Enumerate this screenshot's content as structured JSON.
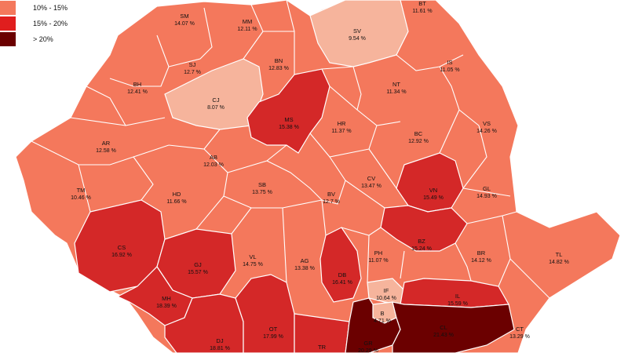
{
  "legend": [
    {
      "label": "10% - 15%",
      "color": "#f4785c"
    },
    {
      "label": "15% - 20%",
      "color": "#e01e1e"
    },
    {
      "label": "> 20%",
      "color": "#6b0000"
    }
  ],
  "colors": {
    "lt10": "#f6b49c",
    "r10_15": "#f4785c",
    "r15_20": "#d42828",
    "gt20": "#6b0000",
    "border": "#ffffff"
  },
  "counties": [
    {
      "code": "SM",
      "value": "14.07 %"
    },
    {
      "code": "MM",
      "value": "12.11 %"
    },
    {
      "code": "SV",
      "value": "9.54 %"
    },
    {
      "code": "BT",
      "value": "11.61 %"
    },
    {
      "code": "SJ",
      "value": "12.7 %"
    },
    {
      "code": "BN",
      "value": "12.83 %"
    },
    {
      "code": "IS",
      "value": "11.05 %"
    },
    {
      "code": "BH",
      "value": "12.41 %"
    },
    {
      "code": "CJ",
      "value": "8.07 %"
    },
    {
      "code": "NT",
      "value": "11.34 %"
    },
    {
      "code": "MS",
      "value": "15.38 %"
    },
    {
      "code": "HR",
      "value": "11.37 %"
    },
    {
      "code": "BC",
      "value": "12.92 %"
    },
    {
      "code": "VS",
      "value": "14.26 %"
    },
    {
      "code": "AR",
      "value": "12.58 %"
    },
    {
      "code": "AB",
      "value": "12.03 %"
    },
    {
      "code": "SB",
      "value": "13.75 %"
    },
    {
      "code": "BV",
      "value": "12.7 %"
    },
    {
      "code": "CV",
      "value": "13.47 %"
    },
    {
      "code": "VN",
      "value": "15.49 %"
    },
    {
      "code": "GL",
      "value": "14.93 %"
    },
    {
      "code": "TM",
      "value": "10.46 %"
    },
    {
      "code": "HD",
      "value": "11.66 %"
    },
    {
      "code": "CS",
      "value": "16.92 %"
    },
    {
      "code": "GJ",
      "value": "15.57 %"
    },
    {
      "code": "VL",
      "value": "14.75 %"
    },
    {
      "code": "AG",
      "value": "13.38 %"
    },
    {
      "code": "DB",
      "value": "16.41 %"
    },
    {
      "code": "PH",
      "value": "11.07 %"
    },
    {
      "code": "BZ",
      "value": "15.24 %"
    },
    {
      "code": "BR",
      "value": "14.12 %"
    },
    {
      "code": "TL",
      "value": "14.82 %"
    },
    {
      "code": "IF",
      "value": "10.64 %"
    },
    {
      "code": "B",
      "value": "4.71 %"
    },
    {
      "code": "IL",
      "value": "15.59 %"
    },
    {
      "code": "MH",
      "value": "18.39 %"
    },
    {
      "code": "DJ",
      "value": "18.81 %"
    },
    {
      "code": "OT",
      "value": "17.99 %"
    },
    {
      "code": "TR",
      "value": ""
    },
    {
      "code": "GR",
      "value": "20.29 %"
    },
    {
      "code": "CL",
      "value": "21.43 %"
    },
    {
      "code": "CT",
      "value": "13.29 %"
    }
  ]
}
